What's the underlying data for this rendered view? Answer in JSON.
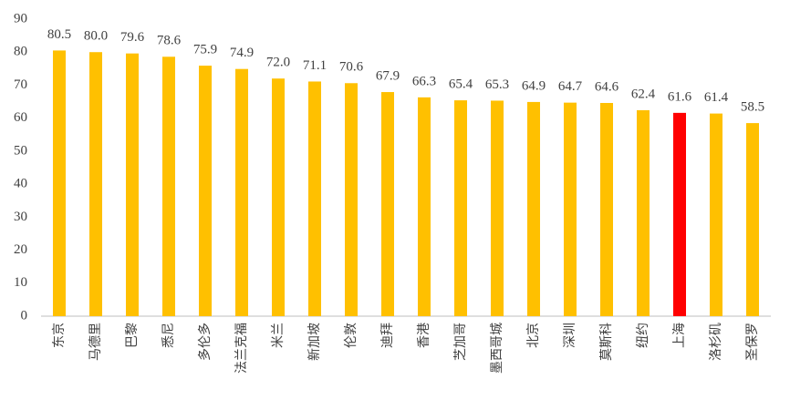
{
  "chart_data": {
    "type": "bar",
    "categories": [
      "东京",
      "马德里",
      "巴黎",
      "悉尼",
      "多伦多",
      "法兰克福",
      "米兰",
      "新加坡",
      "伦敦",
      "迪拜",
      "香港",
      "芝加哥",
      "墨西哥城",
      "北京",
      "深圳",
      "莫斯科",
      "纽约",
      "上海",
      "洛杉矶",
      "圣保罗"
    ],
    "values": [
      80.5,
      80.0,
      79.6,
      78.6,
      75.9,
      74.9,
      72.0,
      71.1,
      70.6,
      67.9,
      66.3,
      65.4,
      65.3,
      64.9,
      64.7,
      64.6,
      62.4,
      61.6,
      61.4,
      58.5
    ],
    "value_labels": [
      "80.5",
      "80.0",
      "79.6",
      "78.6",
      "75.9",
      "74.9",
      "72.0",
      "71.1",
      "70.6",
      "67.9",
      "66.3",
      "65.4",
      "65.3",
      "64.9",
      "64.7",
      "64.6",
      "62.4",
      "61.6",
      "61.4",
      "58.5"
    ],
    "colors": [
      "#FFC000",
      "#FFC000",
      "#FFC000",
      "#FFC000",
      "#FFC000",
      "#FFC000",
      "#FFC000",
      "#FFC000",
      "#FFC000",
      "#FFC000",
      "#FFC000",
      "#FFC000",
      "#FFC000",
      "#FFC000",
      "#FFC000",
      "#FFC000",
      "#FFC000",
      "#FF0000",
      "#FFC000",
      "#FFC000"
    ],
    "ylim": [
      0,
      90
    ],
    "yticks": [
      0,
      10,
      20,
      30,
      40,
      50,
      60,
      70,
      80,
      90
    ],
    "grid": false
  }
}
